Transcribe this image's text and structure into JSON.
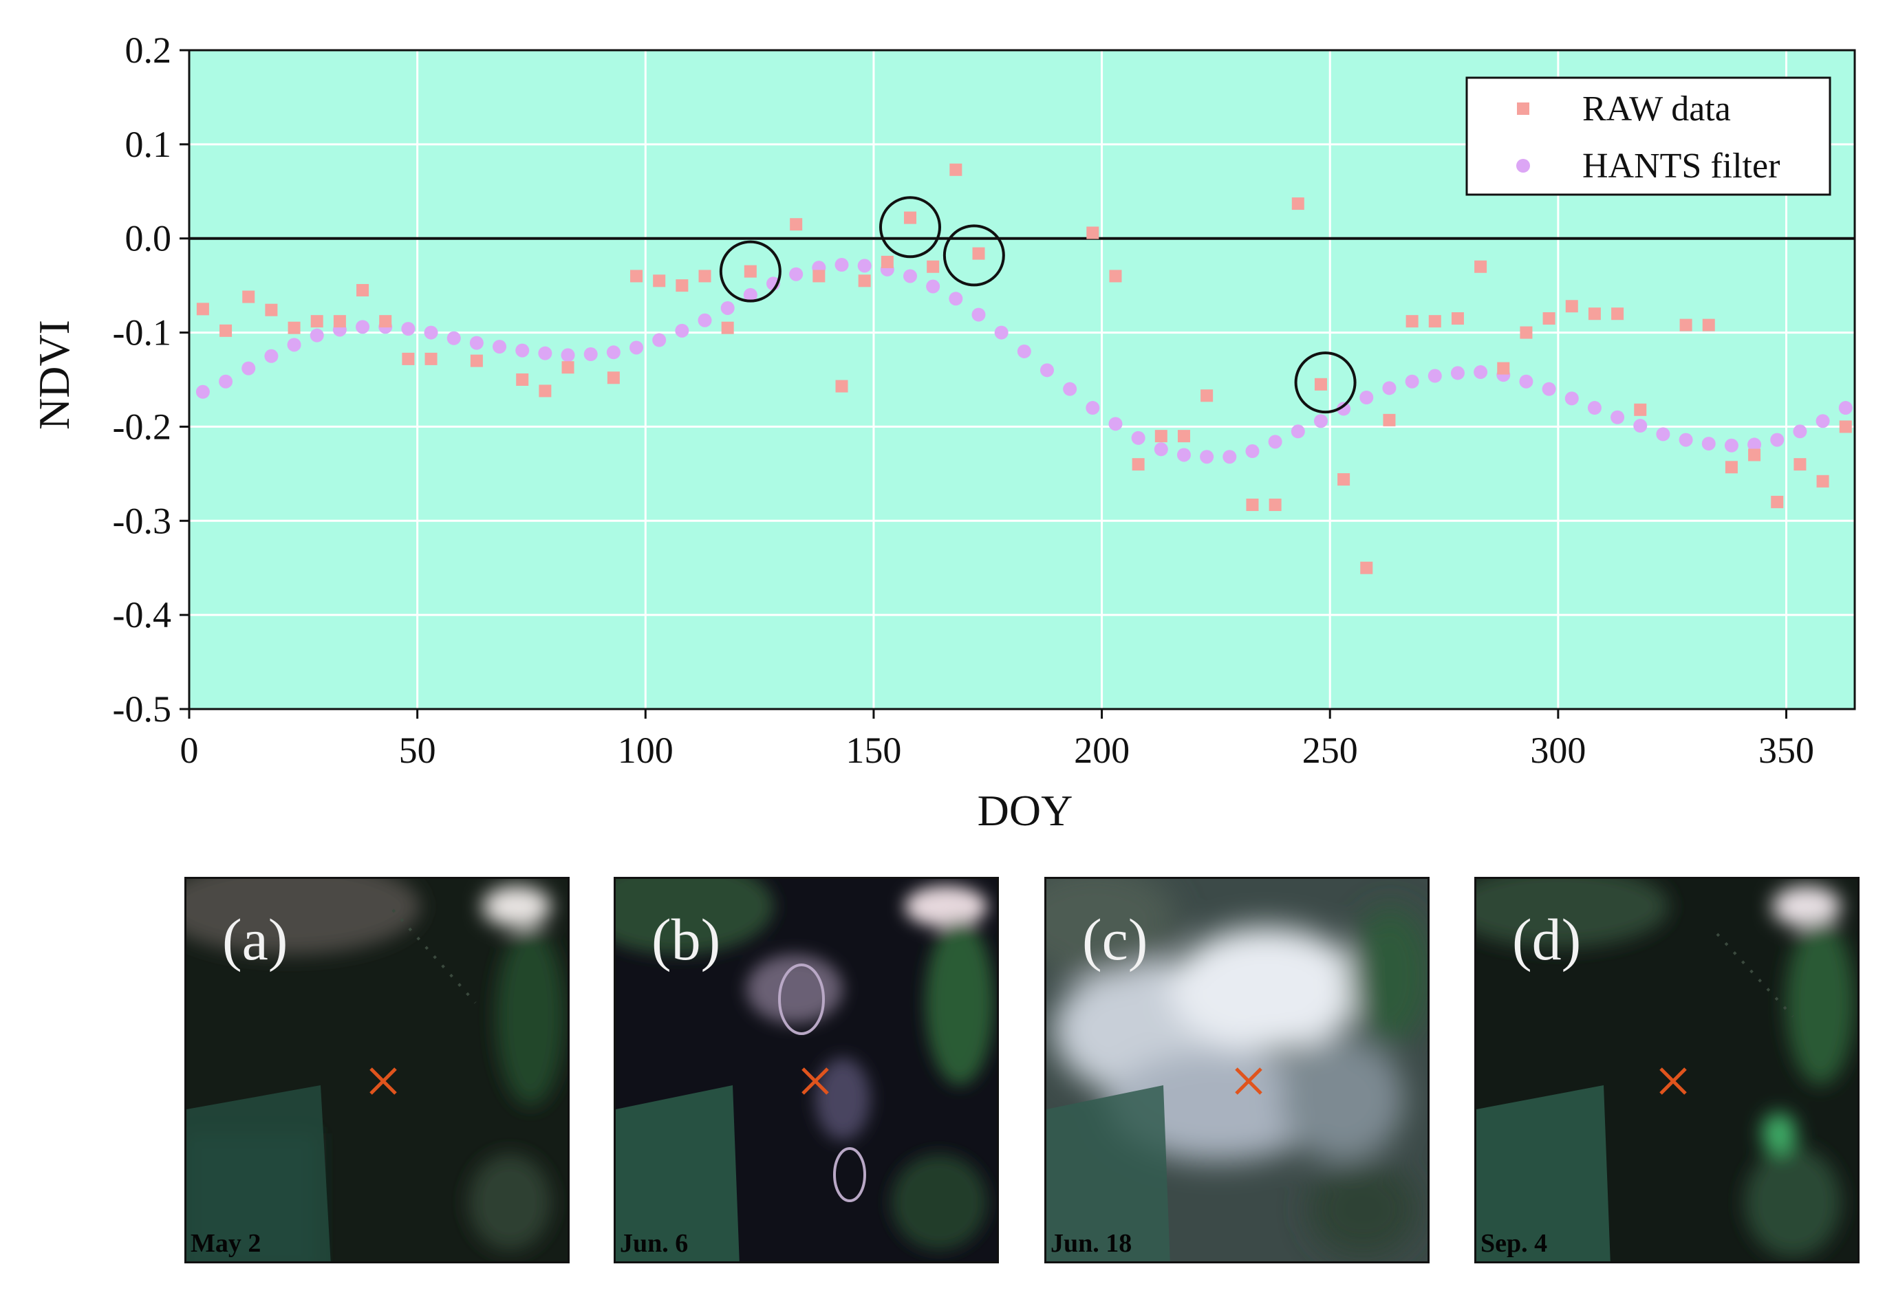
{
  "chart_data": {
    "type": "scatter",
    "xlabel": "DOY",
    "ylabel": "NDVI",
    "xlim": [
      0,
      365
    ],
    "ylim": [
      -0.5,
      0.2
    ],
    "xticks": [
      0,
      50,
      100,
      150,
      200,
      250,
      300,
      350
    ],
    "yticks": [
      -0.5,
      -0.4,
      -0.3,
      -0.2,
      -0.1,
      0.0,
      0.1,
      0.2
    ],
    "ytick_labels": [
      "-0.5",
      "-0.4",
      "-0.3",
      "-0.2",
      "-0.1",
      "0.0",
      "0.1",
      "0.2"
    ],
    "grid": true,
    "zero_line": true,
    "legend_position": "top-right",
    "background_color": "#adfbe4",
    "series": [
      {
        "name": "RAW data",
        "marker": "square",
        "color": "#f6a19c",
        "x": [
          3,
          8,
          13,
          18,
          23,
          28,
          33,
          38,
          43,
          48,
          53,
          63,
          73,
          78,
          83,
          93,
          98,
          103,
          108,
          113,
          118,
          123,
          133,
          138,
          143,
          148,
          153,
          158,
          163,
          168,
          173,
          198,
          203,
          208,
          213,
          218,
          223,
          233,
          238,
          243,
          248,
          253,
          258,
          263,
          268,
          273,
          278,
          283,
          288,
          293,
          298,
          303,
          308,
          313,
          318,
          328,
          333,
          338,
          343,
          348,
          353,
          358,
          363
        ],
        "y": [
          -0.075,
          -0.098,
          -0.062,
          -0.076,
          -0.095,
          -0.088,
          -0.088,
          -0.055,
          -0.088,
          -0.128,
          -0.128,
          -0.13,
          -0.15,
          -0.162,
          -0.137,
          -0.148,
          -0.04,
          -0.045,
          -0.05,
          -0.04,
          -0.095,
          -0.035,
          0.015,
          -0.04,
          -0.157,
          -0.045,
          -0.025,
          0.022,
          -0.03,
          0.073,
          -0.016,
          0.006,
          -0.04,
          -0.24,
          -0.21,
          -0.21,
          -0.167,
          -0.283,
          -0.283,
          0.037,
          -0.155,
          -0.256,
          -0.35,
          -0.193,
          -0.088,
          -0.088,
          -0.085,
          -0.03,
          -0.138,
          -0.1,
          -0.085,
          -0.072,
          -0.08,
          -0.08,
          -0.182,
          -0.092,
          -0.092,
          -0.243,
          -0.23,
          -0.28,
          -0.24,
          -0.258,
          -0.2
        ]
      },
      {
        "name": "HANTS filter",
        "marker": "circle",
        "color": "#dca6f5",
        "x": [
          3,
          8,
          13,
          18,
          23,
          28,
          33,
          38,
          43,
          48,
          53,
          58,
          63,
          68,
          73,
          78,
          83,
          88,
          93,
          98,
          103,
          108,
          113,
          118,
          123,
          128,
          133,
          138,
          143,
          148,
          153,
          158,
          163,
          168,
          173,
          178,
          183,
          188,
          193,
          198,
          203,
          208,
          213,
          218,
          223,
          228,
          233,
          238,
          243,
          248,
          253,
          258,
          263,
          268,
          273,
          278,
          283,
          288,
          293,
          298,
          303,
          308,
          313,
          318,
          323,
          328,
          333,
          338,
          343,
          348,
          353,
          358,
          363
        ],
        "y": [
          -0.163,
          -0.152,
          -0.138,
          -0.125,
          -0.113,
          -0.103,
          -0.097,
          -0.094,
          -0.094,
          -0.096,
          -0.1,
          -0.106,
          -0.111,
          -0.115,
          -0.119,
          -0.122,
          -0.124,
          -0.123,
          -0.121,
          -0.116,
          -0.108,
          -0.098,
          -0.087,
          -0.074,
          -0.06,
          -0.048,
          -0.038,
          -0.031,
          -0.028,
          -0.029,
          -0.033,
          -0.04,
          -0.051,
          -0.064,
          -0.081,
          -0.1,
          -0.12,
          -0.14,
          -0.16,
          -0.18,
          -0.197,
          -0.212,
          -0.224,
          -0.23,
          -0.232,
          -0.232,
          -0.226,
          -0.216,
          -0.205,
          -0.194,
          -0.181,
          -0.169,
          -0.159,
          -0.152,
          -0.146,
          -0.143,
          -0.142,
          -0.145,
          -0.152,
          -0.16,
          -0.17,
          -0.18,
          -0.19,
          -0.199,
          -0.208,
          -0.214,
          -0.218,
          -0.22,
          -0.219,
          -0.214,
          -0.205,
          -0.194,
          -0.18
        ]
      }
    ],
    "annotations": [
      {
        "shape": "circle",
        "x": 123,
        "y": -0.035
      },
      {
        "shape": "circle",
        "x": 158,
        "y": 0.012
      },
      {
        "shape": "circle",
        "x": 172,
        "y": -0.018
      },
      {
        "shape": "circle",
        "x": 249,
        "y": -0.153
      }
    ]
  },
  "panels": [
    {
      "label": "(a)",
      "date": "May 2"
    },
    {
      "label": "(b)",
      "date": "Jun. 6"
    },
    {
      "label": "(c)",
      "date": "Jun. 18"
    },
    {
      "label": "(d)",
      "date": "Sep. 4"
    }
  ],
  "colors": {
    "axis": "#111111",
    "grid": "#ffffff",
    "marker_cross": "#e0541d"
  }
}
